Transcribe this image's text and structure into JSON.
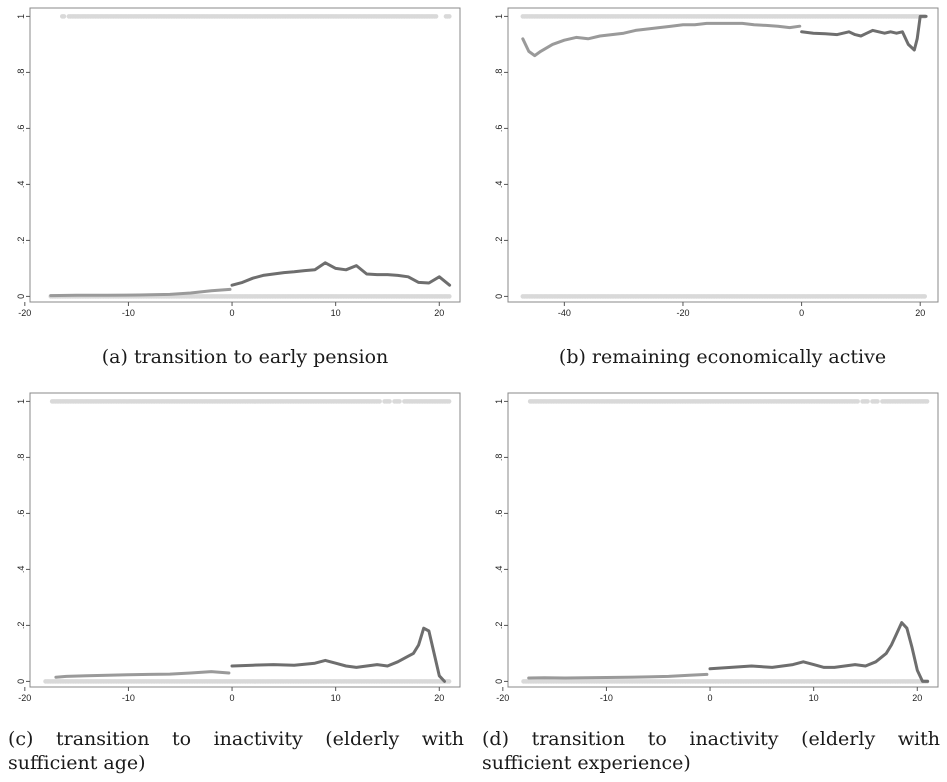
{
  "chart_data": [
    {
      "type": "scatter",
      "caption": "(a) transition to early pension",
      "xlim": [
        -19.5,
        22
      ],
      "ylim": [
        -0.02,
        1.03
      ],
      "xticks": [
        "-20",
        "-10",
        "0",
        "10",
        "20"
      ],
      "yticks": [
        "0",
        ".2",
        ".4",
        ".6",
        ".8",
        "1"
      ],
      "grid": false,
      "dots": {
        "x_range": [
          -17.5,
          21
        ],
        "one_from": -16.5,
        "one_gaps": [
          [
            -17.2,
            -16.5
          ],
          [
            -16.2,
            -15.8
          ],
          [
            19.8,
            20.6
          ]
        ]
      },
      "series": [
        {
          "x": [
            -17.5,
            -15,
            -12,
            -9,
            -6,
            -4,
            -2,
            -0.2
          ],
          "y": [
            0.003,
            0.004,
            0.004,
            0.005,
            0.007,
            0.012,
            0.02,
            0.025
          ]
        },
        {
          "x": [
            0,
            1,
            2,
            3,
            4,
            5,
            6,
            7,
            8,
            9,
            10,
            11,
            12,
            13,
            14,
            15,
            16,
            17,
            18,
            19,
            20,
            21
          ],
          "y": [
            0.04,
            0.05,
            0.065,
            0.075,
            0.08,
            0.085,
            0.088,
            0.092,
            0.095,
            0.12,
            0.1,
            0.095,
            0.11,
            0.08,
            0.078,
            0.078,
            0.075,
            0.07,
            0.05,
            0.048,
            0.07,
            0.04
          ]
        }
      ]
    },
    {
      "type": "scatter",
      "caption": "(b) remaining economically active",
      "xlim": [
        -49.5,
        23
      ],
      "ylim": [
        -0.02,
        1.03
      ],
      "xticks": [
        "-40",
        "-20",
        "0",
        "20"
      ],
      "yticks": [
        "0",
        ".2",
        ".4",
        ".6",
        ".8",
        "1"
      ],
      "grid": false,
      "dots": {
        "x_range": [
          -47,
          21
        ],
        "one_from": -47,
        "one_gaps": []
      },
      "series": [
        {
          "x": [
            -47,
            -46,
            -45,
            -44,
            -42,
            -40,
            -38,
            -36,
            -34,
            -32,
            -30,
            -28,
            -26,
            -24,
            -22,
            -20,
            -18,
            -16,
            -14,
            -12,
            -10,
            -8,
            -6,
            -4,
            -2,
            -0.3
          ],
          "y": [
            0.92,
            0.875,
            0.86,
            0.875,
            0.9,
            0.915,
            0.925,
            0.92,
            0.93,
            0.935,
            0.94,
            0.95,
            0.955,
            0.96,
            0.965,
            0.97,
            0.97,
            0.975,
            0.975,
            0.975,
            0.975,
            0.97,
            0.968,
            0.965,
            0.96,
            0.965
          ]
        },
        {
          "x": [
            0,
            2,
            4,
            6,
            8,
            9,
            10,
            11,
            12,
            13,
            14,
            15,
            16,
            17,
            18,
            19,
            19.5,
            20,
            21
          ],
          "y": [
            0.945,
            0.94,
            0.938,
            0.935,
            0.945,
            0.935,
            0.93,
            0.94,
            0.95,
            0.945,
            0.94,
            0.945,
            0.94,
            0.945,
            0.9,
            0.88,
            0.92,
            1.0,
            1.0
          ]
        }
      ]
    },
    {
      "type": "scatter",
      "caption": "(c) transition to inactivity (elderly with sufficient age)",
      "xlim": [
        -19.5,
        22
      ],
      "ylim": [
        -0.02,
        1.03
      ],
      "xticks": [
        "-20",
        "-10",
        "0",
        "10",
        "20"
      ],
      "yticks": [
        "0",
        ".2",
        ".4",
        ".6",
        ".8",
        "1"
      ],
      "grid": false,
      "dots": {
        "x_range": [
          -18,
          21
        ],
        "one_from": -17.5,
        "one_gaps": [
          [
            14.3,
            14.6
          ],
          [
            15.3,
            15.6
          ],
          [
            16.3,
            16.6
          ]
        ]
      },
      "series": [
        {
          "x": [
            -17,
            -16,
            -14,
            -12,
            -10,
            -8,
            -6,
            -4,
            -2,
            -0.3
          ],
          "y": [
            0.015,
            0.018,
            0.02,
            0.022,
            0.024,
            0.025,
            0.026,
            0.03,
            0.035,
            0.03
          ]
        },
        {
          "x": [
            0,
            2,
            4,
            6,
            8,
            9,
            10,
            11,
            12,
            13,
            14,
            15,
            16,
            17,
            17.5,
            18,
            18.5,
            19,
            19.5,
            20,
            20.5
          ],
          "y": [
            0.055,
            0.058,
            0.06,
            0.058,
            0.065,
            0.075,
            0.065,
            0.055,
            0.05,
            0.055,
            0.06,
            0.055,
            0.07,
            0.09,
            0.1,
            0.13,
            0.19,
            0.18,
            0.1,
            0.02,
            0.0
          ]
        }
      ]
    },
    {
      "type": "scatter",
      "caption": "(d) transition to inactivity (elderly with sufficient experience)",
      "xlim": [
        -19.5,
        22
      ],
      "ylim": [
        -0.02,
        1.03
      ],
      "xticks": [
        "-20",
        "-10",
        "0",
        "10",
        "20"
      ],
      "yticks": [
        "0",
        ".2",
        ".4",
        ".6",
        ".8",
        "1"
      ],
      "grid": false,
      "dots": {
        "x_range": [
          -18,
          21
        ],
        "one_from": -17.5,
        "one_gaps": [
          [
            14.3,
            14.6
          ],
          [
            15.3,
            15.6
          ],
          [
            16.3,
            16.6
          ]
        ]
      },
      "series": [
        {
          "x": [
            -17.5,
            -16,
            -14,
            -12,
            -10,
            -8,
            -6,
            -4,
            -2,
            -0.3
          ],
          "y": [
            0.012,
            0.013,
            0.012,
            0.013,
            0.014,
            0.015,
            0.016,
            0.018,
            0.022,
            0.025
          ]
        },
        {
          "x": [
            0,
            2,
            4,
            6,
            8,
            9,
            10,
            11,
            12,
            13,
            14,
            15,
            16,
            17,
            17.5,
            18,
            18.5,
            19,
            19.5,
            20,
            20.5,
            21
          ],
          "y": [
            0.045,
            0.05,
            0.055,
            0.05,
            0.06,
            0.07,
            0.06,
            0.05,
            0.05,
            0.055,
            0.06,
            0.055,
            0.07,
            0.1,
            0.13,
            0.17,
            0.21,
            0.19,
            0.12,
            0.04,
            0.0,
            0.0
          ]
        }
      ]
    }
  ]
}
